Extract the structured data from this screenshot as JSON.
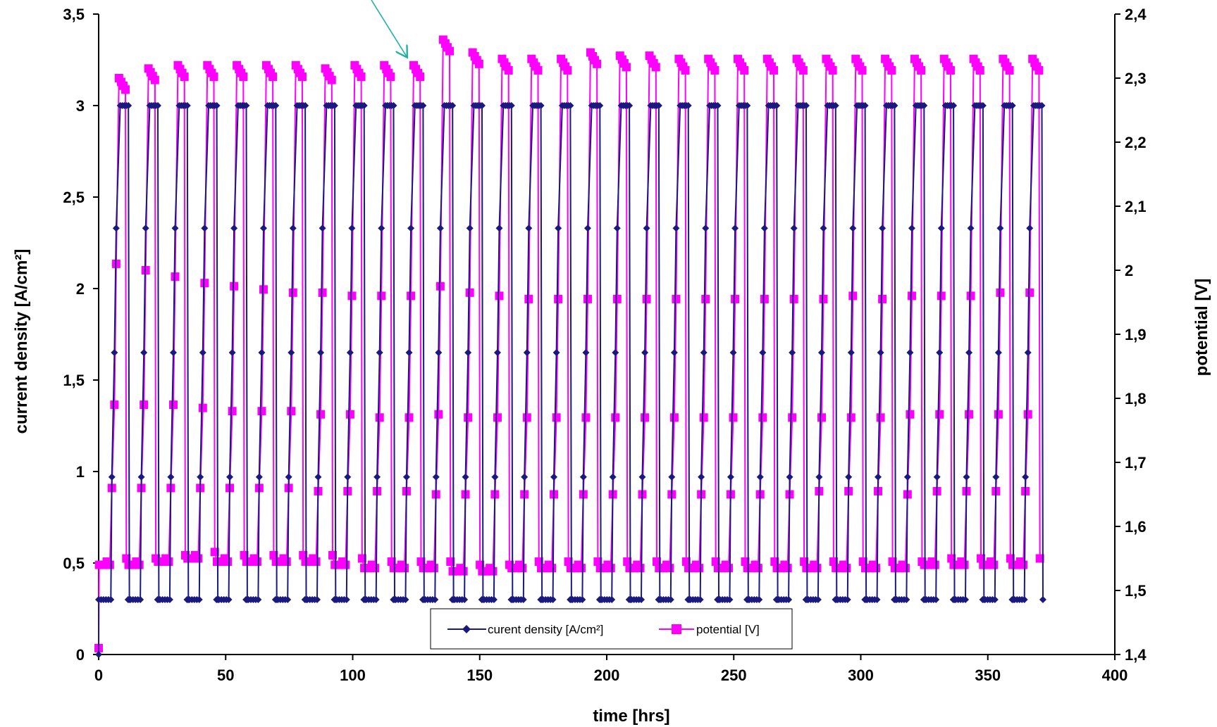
{
  "chart_data": {
    "type": "line",
    "title": "",
    "xlabel": "time [hrs]",
    "ylabel": "current density [A/cm²]",
    "y2label": "potential [V]",
    "xlim": [
      0,
      400
    ],
    "ylim": [
      0,
      3.5
    ],
    "y2lim": [
      1.4,
      2.4
    ],
    "x_ticks": [
      "0",
      "50",
      "100",
      "150",
      "200",
      "250",
      "300",
      "350",
      "400"
    ],
    "y_ticks": [
      "0",
      "0,5",
      "1",
      "1,5",
      "2",
      "2,5",
      "3",
      "3,5"
    ],
    "y2_ticks": [
      "1,4",
      "1,5",
      "1,6",
      "1,7",
      "1,8",
      "1,9",
      "2",
      "2,1",
      "2,2",
      "2,3",
      "2,4"
    ],
    "grid": false,
    "legend": {
      "position": "bottom-center",
      "entries": [
        {
          "name": "curent density [A/cm²]",
          "color": "#1a1a7e",
          "marker": "diamond",
          "axis": "left"
        },
        {
          "name": "potential [V]",
          "color": "#ff00ff",
          "marker": "square",
          "axis": "right"
        }
      ]
    },
    "annotation": {
      "type": "arrow",
      "color": "#20b2a0",
      "points_to_x": 122,
      "points_to_y2": 2.33
    },
    "cycle": {
      "start_hours": 0,
      "period_hours": 11.6,
      "count": 32,
      "steps_hours": [
        5.2,
        6.2,
        6.9,
        7.6,
        8.5
      ],
      "current_density_levels": [
        0.3,
        0.97,
        1.65,
        2.33,
        3.0
      ],
      "current_density_plateau_samples": 5,
      "current_density_base_samples": 6,
      "potential_low": [
        1.54,
        1.54,
        1.545,
        1.55,
        1.545,
        1.545,
        1.545,
        1.545,
        1.54,
        1.535,
        1.535,
        1.535,
        1.53,
        1.53,
        1.535,
        1.535,
        1.535,
        1.535,
        1.535,
        1.535,
        1.535,
        1.535,
        1.535,
        1.535,
        1.535,
        1.535,
        1.535,
        1.535,
        1.54,
        1.54,
        1.54,
        1.54
      ],
      "potential_step1": [
        1.66,
        1.66,
        1.66,
        1.66,
        1.66,
        1.66,
        1.66,
        1.655,
        1.655,
        1.655,
        1.655,
        1.65,
        1.65,
        1.65,
        1.65,
        1.65,
        1.65,
        1.65,
        1.65,
        1.65,
        1.65,
        1.65,
        1.65,
        1.65,
        1.655,
        1.655,
        1.655,
        1.65,
        1.655,
        1.655,
        1.655,
        1.655
      ],
      "potential_step2": [
        1.79,
        1.79,
        1.79,
        1.785,
        1.78,
        1.78,
        1.78,
        1.775,
        1.775,
        1.77,
        1.77,
        1.775,
        1.77,
        1.77,
        1.77,
        1.77,
        1.77,
        1.77,
        1.77,
        1.77,
        1.77,
        1.77,
        1.77,
        1.77,
        1.77,
        1.77,
        1.77,
        1.775,
        1.775,
        1.775,
        1.775,
        1.775
      ],
      "potential_step3": [
        2.01,
        2.0,
        1.99,
        1.98,
        1.975,
        1.97,
        1.965,
        1.965,
        1.96,
        1.96,
        1.96,
        1.975,
        1.965,
        1.96,
        1.955,
        1.955,
        1.955,
        1.955,
        1.955,
        1.955,
        1.955,
        1.955,
        1.955,
        1.955,
        1.955,
        1.96,
        1.955,
        1.96,
        1.96,
        1.96,
        1.965,
        1.965
      ],
      "potential_peak": [
        2.3,
        2.315,
        2.32,
        2.32,
        2.32,
        2.32,
        2.32,
        2.315,
        2.32,
        2.32,
        2.32,
        2.36,
        2.34,
        2.33,
        2.33,
        2.33,
        2.34,
        2.335,
        2.335,
        2.33,
        2.33,
        2.33,
        2.33,
        2.33,
        2.33,
        2.33,
        2.33,
        2.33,
        2.33,
        2.33,
        2.33,
        2.33
      ],
      "potential_decay_per_hour": 0.007
    }
  }
}
